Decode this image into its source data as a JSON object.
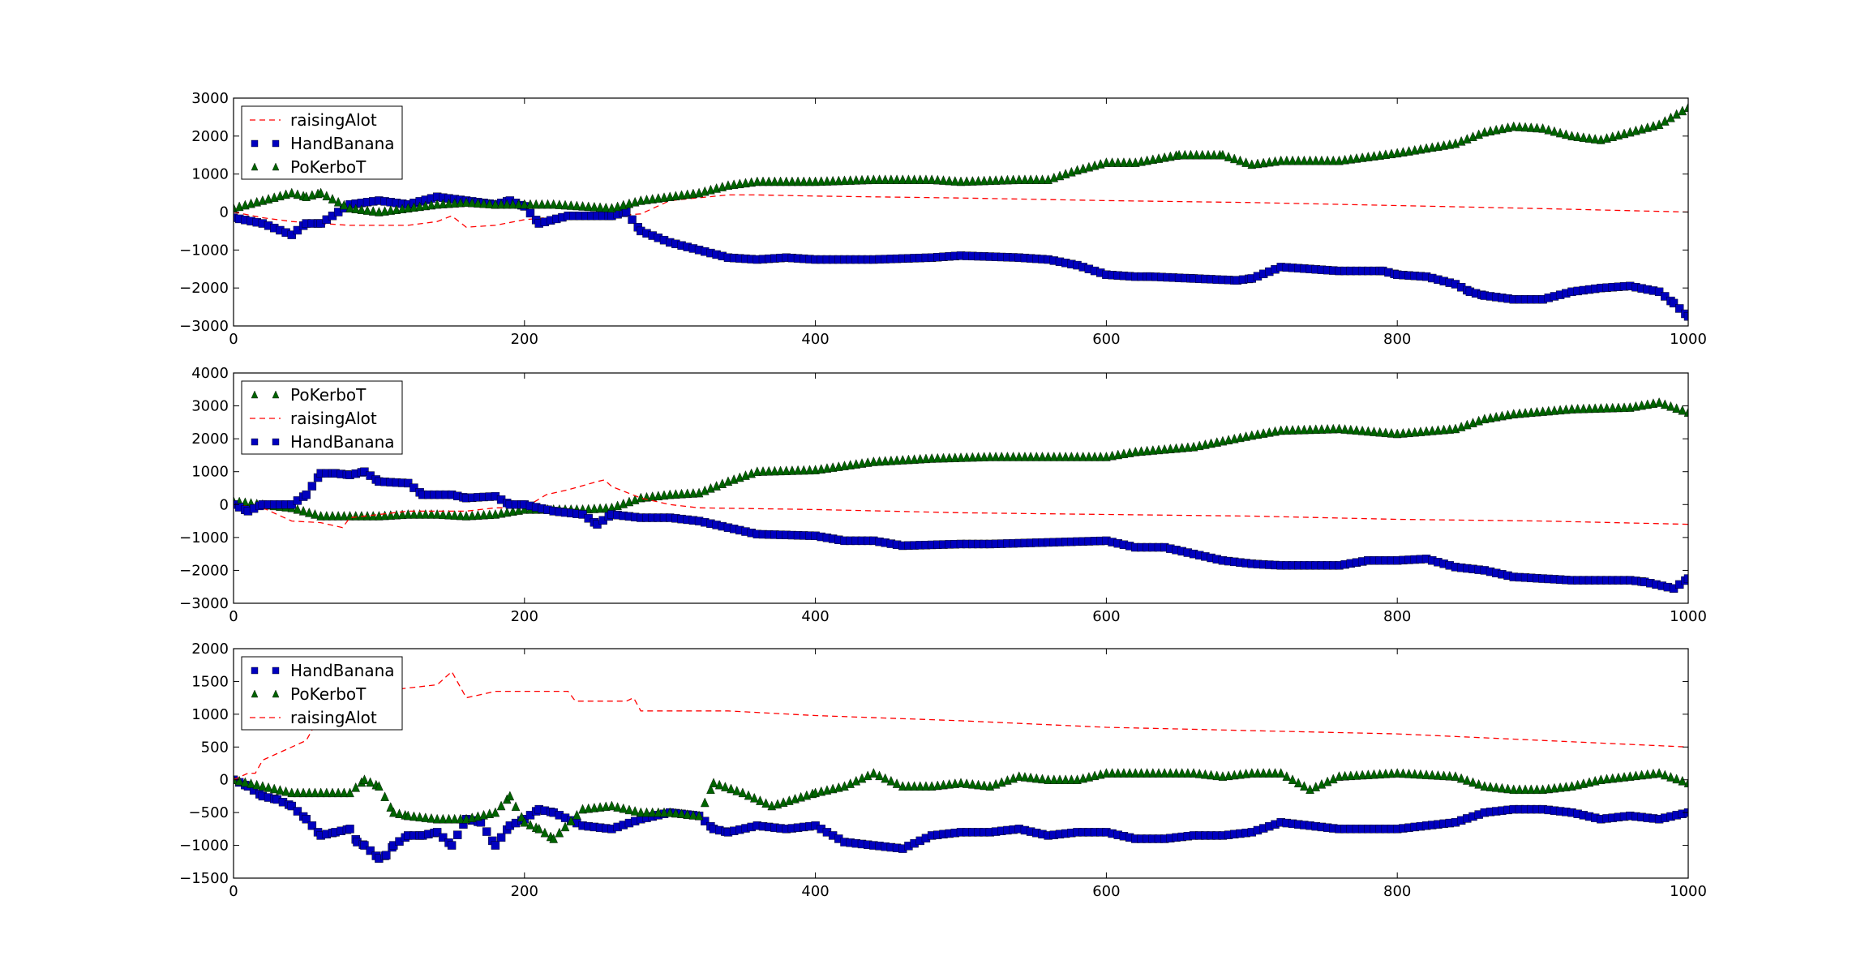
{
  "colors": {
    "raisingAlot": "#ff0000",
    "HandBanana": "#0000bf",
    "PoKerboT": "#006400"
  },
  "chart_data": [
    {
      "type": "scatter",
      "title": "",
      "xlabel": "",
      "ylabel": "",
      "xlim": [
        0,
        1000
      ],
      "ylim": [
        -3000,
        3000
      ],
      "xticks": [
        0,
        200,
        400,
        600,
        800,
        1000
      ],
      "xtick_labels": [
        "0",
        "200",
        "400",
        "600",
        "800",
        "1000"
      ],
      "yticks": [
        -3000,
        -2000,
        -1000,
        0,
        1000,
        2000,
        3000
      ],
      "ytick_labels": [
        "−3000",
        "−2000",
        "−1000",
        "0",
        "1000",
        "2000",
        "3000"
      ],
      "legend": [
        "raisingAlot",
        "HandBanana",
        "PoKerboT"
      ],
      "legend_position": "upper-left",
      "series": [
        {
          "name": "raisingAlot",
          "style": "dashed-line",
          "x": [
            0,
            20,
            40,
            60,
            80,
            100,
            120,
            140,
            150,
            160,
            180,
            200,
            230,
            260,
            280,
            300,
            340,
            360,
            400,
            500,
            600,
            700,
            800,
            900,
            1000
          ],
          "y": [
            0,
            -150,
            -250,
            -300,
            -350,
            -350,
            -350,
            -250,
            -100,
            -400,
            -350,
            -200,
            -100,
            -100,
            -50,
            300,
            450,
            450,
            420,
            370,
            300,
            250,
            170,
            90,
            0
          ]
        },
        {
          "name": "HandBanana",
          "style": "square-markers",
          "x": [
            0,
            20,
            40,
            50,
            60,
            80,
            100,
            120,
            140,
            160,
            180,
            190,
            200,
            210,
            230,
            260,
            270,
            280,
            300,
            320,
            340,
            360,
            380,
            400,
            440,
            480,
            500,
            540,
            560,
            580,
            600,
            620,
            630,
            660,
            690,
            700,
            720,
            760,
            790,
            800,
            820,
            840,
            850,
            860,
            880,
            900,
            920,
            940,
            960,
            980,
            990,
            1000
          ],
          "y": [
            -150,
            -300,
            -600,
            -300,
            -300,
            200,
            300,
            200,
            400,
            300,
            200,
            300,
            150,
            -300,
            -100,
            -100,
            0,
            -500,
            -800,
            -1000,
            -1200,
            -1250,
            -1200,
            -1250,
            -1250,
            -1200,
            -1150,
            -1200,
            -1250,
            -1400,
            -1650,
            -1700,
            -1700,
            -1750,
            -1800,
            -1750,
            -1450,
            -1550,
            -1550,
            -1650,
            -1700,
            -1900,
            -2100,
            -2200,
            -2300,
            -2300,
            -2100,
            -2000,
            -1950,
            -2100,
            -2400,
            -2750
          ]
        },
        {
          "name": "PoKerboT",
          "style": "triangle-markers",
          "x": [
            0,
            20,
            40,
            50,
            60,
            80,
            100,
            120,
            140,
            160,
            180,
            200,
            220,
            240,
            260,
            280,
            300,
            320,
            340,
            360,
            400,
            440,
            480,
            500,
            540,
            560,
            580,
            600,
            620,
            650,
            680,
            700,
            720,
            760,
            800,
            840,
            860,
            880,
            900,
            920,
            940,
            960,
            980,
            1000
          ],
          "y": [
            100,
            300,
            500,
            400,
            500,
            100,
            0,
            100,
            200,
            250,
            200,
            200,
            200,
            150,
            100,
            300,
            400,
            500,
            700,
            800,
            800,
            850,
            850,
            800,
            850,
            850,
            1100,
            1300,
            1300,
            1500,
            1500,
            1250,
            1350,
            1350,
            1550,
            1800,
            2100,
            2250,
            2200,
            2000,
            1900,
            2100,
            2300,
            2750
          ]
        }
      ]
    },
    {
      "type": "scatter",
      "title": "",
      "xlabel": "",
      "ylabel": "",
      "xlim": [
        0,
        1000
      ],
      "ylim": [
        -3000,
        4000
      ],
      "xticks": [
        0,
        200,
        400,
        600,
        800,
        1000
      ],
      "xtick_labels": [
        "0",
        "200",
        "400",
        "600",
        "800",
        "1000"
      ],
      "yticks": [
        -3000,
        -2000,
        -1000,
        0,
        1000,
        2000,
        3000,
        4000
      ],
      "ytick_labels": [
        "−3000",
        "−2000",
        "−1000",
        "0",
        "1000",
        "2000",
        "3000",
        "4000"
      ],
      "legend": [
        "PoKerboT",
        "raisingAlot",
        "HandBanana"
      ],
      "legend_position": "upper-left",
      "series": [
        {
          "name": "PoKerboT",
          "style": "triangle-markers",
          "x": [
            0,
            20,
            40,
            60,
            80,
            100,
            120,
            140,
            160,
            180,
            200,
            220,
            240,
            260,
            280,
            300,
            320,
            340,
            360,
            400,
            440,
            480,
            520,
            560,
            600,
            620,
            660,
            700,
            720,
            760,
            800,
            840,
            860,
            880,
            920,
            960,
            980,
            1000
          ],
          "y": [
            100,
            0,
            -100,
            -350,
            -350,
            -350,
            -300,
            -300,
            -350,
            -300,
            -150,
            -150,
            -150,
            -100,
            200,
            300,
            350,
            700,
            1000,
            1050,
            1300,
            1400,
            1450,
            1450,
            1450,
            1600,
            1750,
            2100,
            2250,
            2300,
            2150,
            2300,
            2600,
            2750,
            2900,
            2950,
            3100,
            2800
          ]
        },
        {
          "name": "raisingAlot",
          "style": "dashed-line",
          "x": [
            0,
            20,
            40,
            60,
            75,
            80,
            100,
            120,
            140,
            160,
            180,
            200,
            215,
            230,
            250,
            255,
            260,
            280,
            300,
            320,
            400,
            500,
            600,
            700,
            800,
            900,
            1000
          ],
          "y": [
            0,
            -100,
            -500,
            -550,
            -700,
            -400,
            -300,
            -200,
            -200,
            -200,
            -100,
            -100,
            300,
            450,
            700,
            750,
            550,
            200,
            0,
            -100,
            -150,
            -250,
            -300,
            -350,
            -450,
            -500,
            -600
          ]
        },
        {
          "name": "HandBanana",
          "style": "square-markers",
          "x": [
            0,
            10,
            20,
            40,
            50,
            60,
            70,
            80,
            90,
            100,
            120,
            130,
            150,
            160,
            180,
            190,
            200,
            220,
            240,
            250,
            260,
            280,
            300,
            320,
            340,
            360,
            400,
            420,
            440,
            460,
            500,
            520,
            560,
            600,
            620,
            640,
            660,
            680,
            700,
            720,
            760,
            780,
            800,
            820,
            840,
            860,
            880,
            920,
            960,
            970,
            990,
            1000
          ],
          "y": [
            0,
            -200,
            0,
            0,
            300,
            950,
            950,
            900,
            1000,
            700,
            650,
            300,
            300,
            200,
            250,
            0,
            0,
            -200,
            -300,
            -600,
            -300,
            -400,
            -400,
            -500,
            -700,
            -900,
            -950,
            -1100,
            -1100,
            -1250,
            -1200,
            -1200,
            -1150,
            -1100,
            -1300,
            -1300,
            -1500,
            -1700,
            -1800,
            -1850,
            -1850,
            -1700,
            -1700,
            -1650,
            -1900,
            -2000,
            -2200,
            -2300,
            -2300,
            -2350,
            -2550,
            -2250
          ]
        }
      ]
    },
    {
      "type": "scatter",
      "title": "",
      "xlabel": "",
      "ylabel": "",
      "xlim": [
        0,
        1000
      ],
      "ylim": [
        -1500,
        2000
      ],
      "xticks": [
        0,
        200,
        400,
        600,
        800,
        1000
      ],
      "xtick_labels": [
        "0",
        "200",
        "400",
        "600",
        "800",
        "1000"
      ],
      "yticks": [
        -1500,
        -1000,
        -500,
        0,
        500,
        1000,
        1500,
        2000
      ],
      "ytick_labels": [
        "−1500",
        "−1000",
        "−500",
        "0",
        "500",
        "1000",
        "1500",
        "2000"
      ],
      "legend": [
        "HandBanana",
        "PoKerboT",
        "raisingAlot"
      ],
      "legend_position": "upper-left",
      "series": [
        {
          "name": "HandBanana",
          "style": "square-markers",
          "x": [
            0,
            10,
            20,
            30,
            40,
            50,
            60,
            70,
            80,
            85,
            90,
            100,
            105,
            110,
            120,
            130,
            140,
            150,
            160,
            170,
            180,
            190,
            200,
            210,
            220,
            240,
            260,
            280,
            300,
            320,
            330,
            340,
            360,
            380,
            400,
            420,
            440,
            460,
            480,
            500,
            520,
            540,
            560,
            580,
            600,
            620,
            640,
            660,
            680,
            700,
            720,
            760,
            800,
            840,
            860,
            880,
            900,
            920,
            940,
            960,
            980,
            1000
          ],
          "y": [
            0,
            -100,
            -250,
            -300,
            -400,
            -600,
            -850,
            -800,
            -750,
            -950,
            -1000,
            -1200,
            -1150,
            -1000,
            -850,
            -850,
            -800,
            -1000,
            -600,
            -650,
            -1000,
            -700,
            -600,
            -450,
            -500,
            -700,
            -750,
            -600,
            -500,
            -550,
            -750,
            -800,
            -700,
            -750,
            -700,
            -950,
            -1000,
            -1050,
            -850,
            -800,
            -800,
            -750,
            -850,
            -800,
            -800,
            -900,
            -900,
            -850,
            -850,
            -800,
            -650,
            -750,
            -750,
            -650,
            -500,
            -450,
            -450,
            -500,
            -600,
            -550,
            -600,
            -500
          ]
        },
        {
          "name": "PoKerboT",
          "style": "triangle-markers",
          "x": [
            0,
            20,
            40,
            60,
            80,
            90,
            100,
            110,
            120,
            140,
            160,
            180,
            190,
            200,
            210,
            220,
            240,
            260,
            280,
            300,
            320,
            330,
            350,
            370,
            400,
            420,
            440,
            460,
            480,
            500,
            520,
            540,
            560,
            580,
            600,
            620,
            640,
            660,
            680,
            700,
            720,
            740,
            760,
            800,
            840,
            860,
            880,
            900,
            920,
            940,
            960,
            980,
            1000
          ],
          "y": [
            0,
            -100,
            -200,
            -200,
            -200,
            0,
            -100,
            -500,
            -550,
            -600,
            -600,
            -500,
            -250,
            -650,
            -750,
            -900,
            -450,
            -400,
            -500,
            -500,
            -550,
            -50,
            -200,
            -400,
            -200,
            -100,
            100,
            -100,
            -100,
            -50,
            -100,
            50,
            0,
            0,
            100,
            100,
            100,
            100,
            50,
            100,
            100,
            -150,
            50,
            100,
            50,
            -100,
            -150,
            -150,
            -100,
            0,
            50,
            100,
            -50
          ]
        },
        {
          "name": "raisingAlot",
          "style": "dashed-line",
          "x": [
            0,
            10,
            15,
            20,
            30,
            40,
            50,
            55,
            60,
            80,
            100,
            120,
            140,
            150,
            155,
            160,
            170,
            180,
            200,
            230,
            235,
            270,
            275,
            280,
            300,
            340,
            400,
            500,
            600,
            700,
            800,
            900,
            1000
          ],
          "y": [
            0,
            100,
            100,
            300,
            400,
            500,
            600,
            800,
            1100,
            1300,
            1350,
            1400,
            1450,
            1650,
            1450,
            1250,
            1300,
            1350,
            1350,
            1350,
            1200,
            1200,
            1250,
            1050,
            1050,
            1050,
            980,
            900,
            800,
            750,
            700,
            600,
            500
          ]
        }
      ]
    }
  ]
}
